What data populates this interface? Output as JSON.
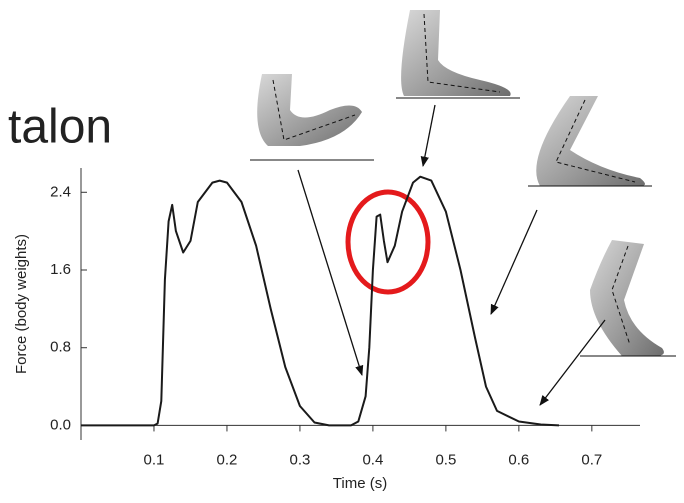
{
  "chart_data": {
    "type": "line",
    "annotation": "talon",
    "x_label": "Time (s)",
    "y_label": "Force (body weights)",
    "color": "#1a1a1a",
    "x": [
      0,
      0.1,
      0.105,
      0.11,
      0.115,
      0.12,
      0.125,
      0.13,
      0.14,
      0.15,
      0.16,
      0.18,
      0.19,
      0.2,
      0.22,
      0.24,
      0.26,
      0.28,
      0.3,
      0.32,
      0.34,
      0.37,
      0.38,
      0.39,
      0.395,
      0.4,
      0.405,
      0.41,
      0.415,
      0.42,
      0.43,
      0.44,
      0.455,
      0.465,
      0.48,
      0.5,
      0.52,
      0.54,
      0.555,
      0.57,
      0.6,
      0.63,
      0.655
    ],
    "values": [
      0,
      0,
      0.02,
      0.25,
      1.5,
      2.1,
      2.27,
      2.0,
      1.78,
      1.9,
      2.3,
      2.5,
      2.52,
      2.5,
      2.3,
      1.85,
      1.2,
      0.6,
      0.2,
      0.03,
      0,
      0,
      0.04,
      0.3,
      0.8,
      1.6,
      2.15,
      2.17,
      1.9,
      1.68,
      1.85,
      2.2,
      2.5,
      2.56,
      2.52,
      2.2,
      1.6,
      0.9,
      0.4,
      0.15,
      0.04,
      0.01,
      0
    ],
    "xlim": [
      0,
      0.766
    ],
    "ylim": [
      -0.15,
      2.65
    ],
    "xticks": [
      0.1,
      0.2,
      0.3,
      0.4,
      0.5,
      0.6,
      0.7
    ],
    "yticks": [
      {
        "value": 0,
        "label": "0.0"
      },
      0.8,
      1.6,
      2.4
    ]
  }
}
